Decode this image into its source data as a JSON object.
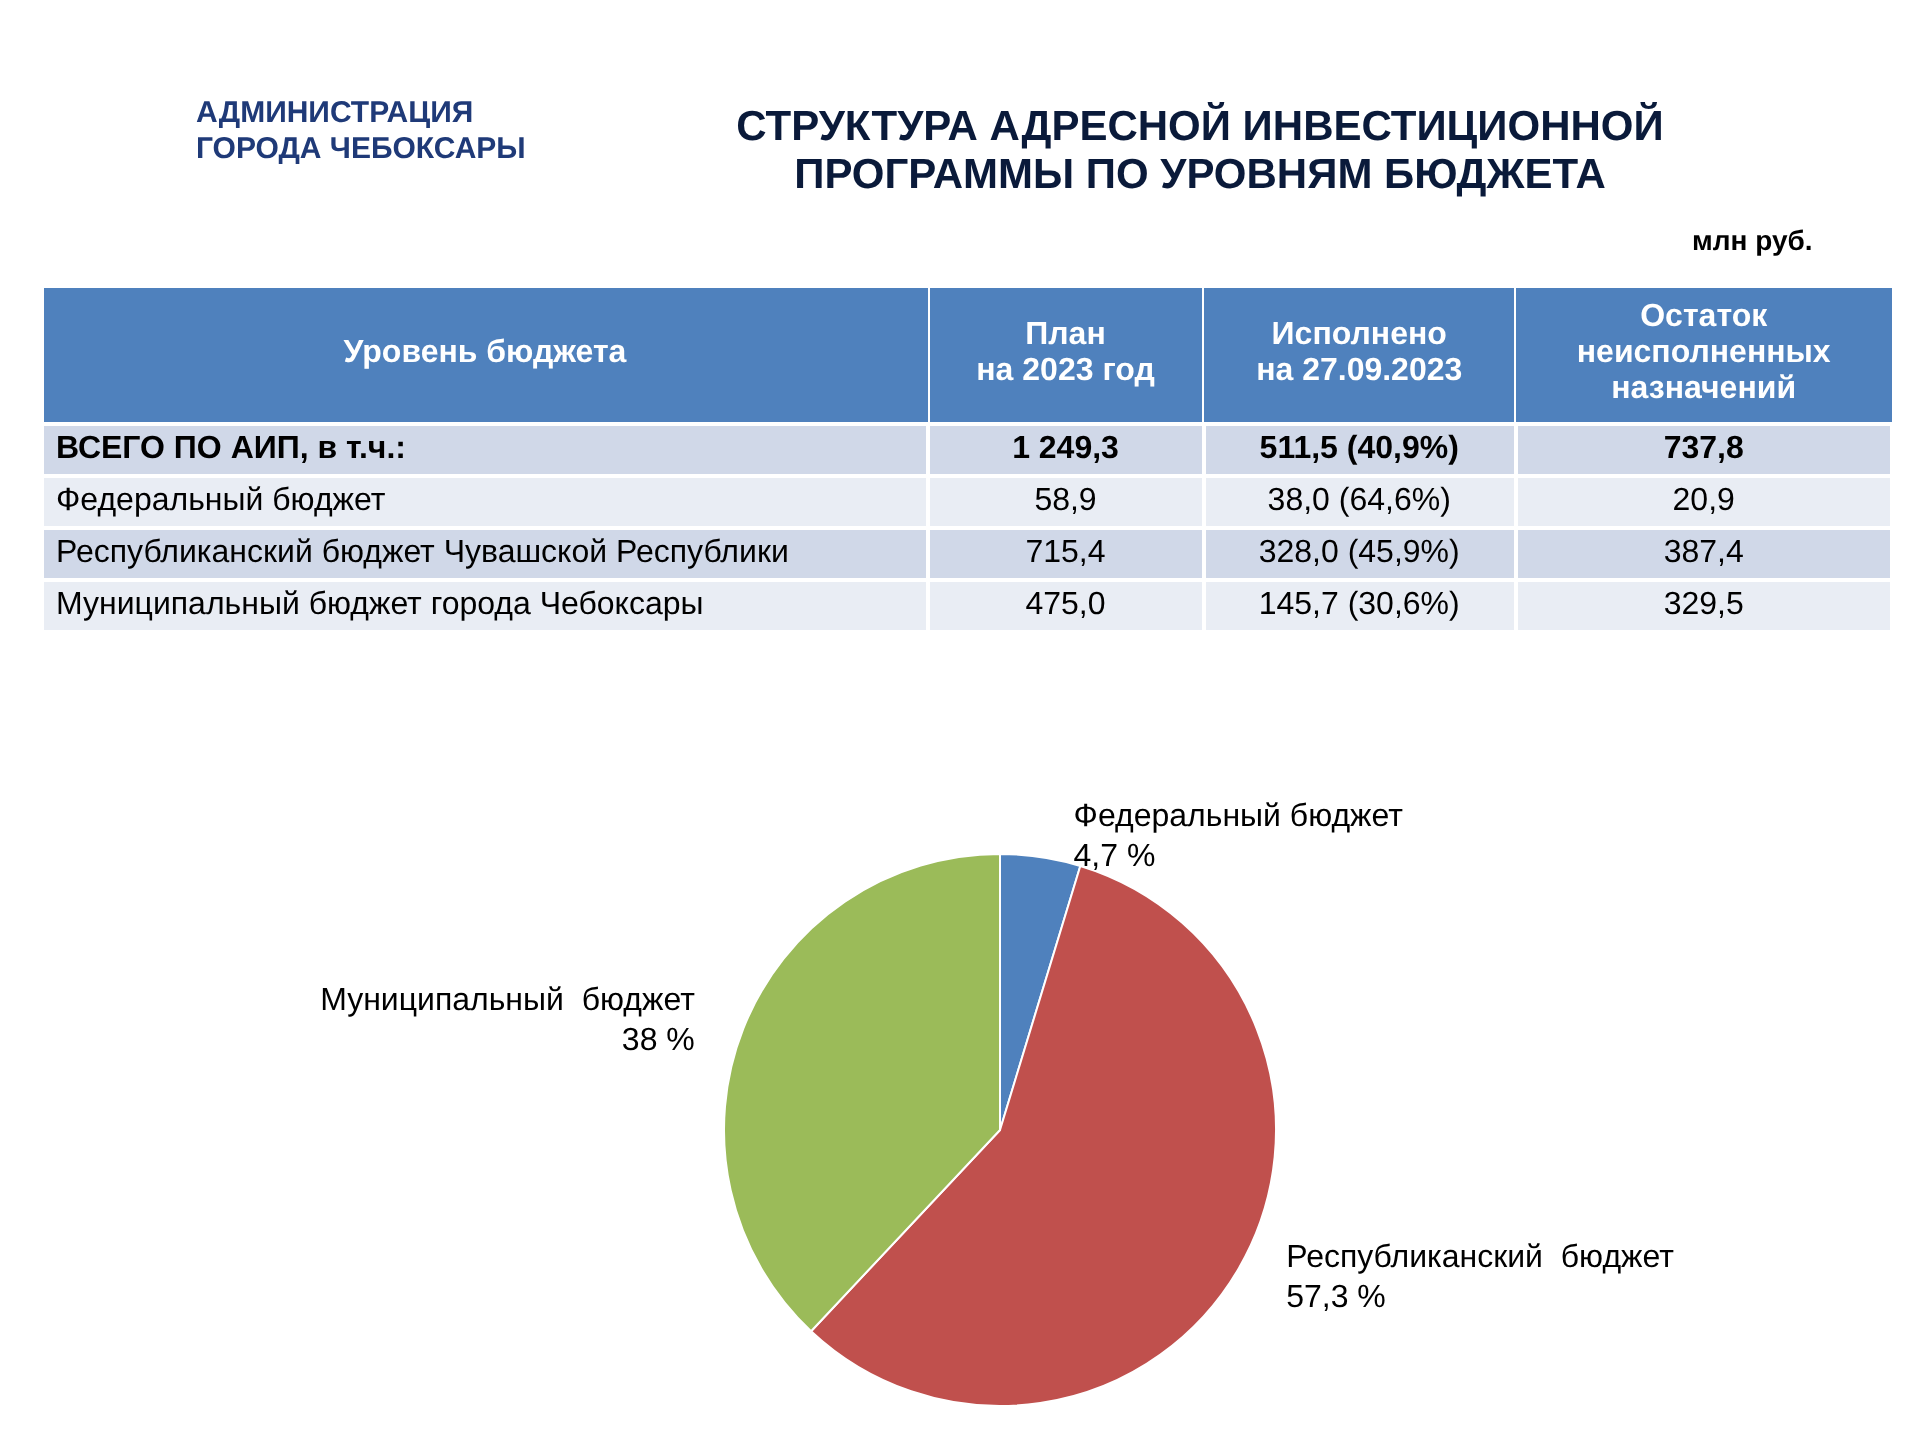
{
  "chart_data": [
    {
      "type": "other",
      "title": "СТРУКТУРА АДРЕСНОЙ ИНВЕСТИЦИОННОЙ\nПРОГРАММЫ ПО УРОВНЯМ БЮДЖЕТА",
      "annotations": [
        "АДМИНИСТРАЦИЯ\nГОРОДА ЧЕБОКСАРЫ",
        "млн руб."
      ],
      "categories": [
        "Уровень бюджета",
        "План\nна 2023 год",
        "Исполнено\nна 27.09.2023",
        "Остаток\nнеисполненных\nназначений"
      ],
      "y_categories": [
        "ВСЕГО ПО АИП, в т.ч.:",
        "Федеральный бюджет",
        "Республиканский  бюджет Чувашской Республики",
        "Муниципальный  бюджет города Чебоксары"
      ],
      "cell_labels": [
        [
          "1 249,3",
          "511,5 (40,9%)",
          "737,8"
        ],
        [
          "58,9",
          "38,0 (64,6%)",
          "20,9"
        ],
        [
          "715,4",
          "328,0 (45,9%)",
          "387,4"
        ],
        [
          "475,0",
          "145,7 (30,6%)",
          "329,5"
        ]
      ]
    },
    {
      "type": "pie",
      "categories": [
        "Федеральный бюджет",
        "Республиканский  бюджет",
        "Муниципальный  бюджет"
      ],
      "values": [
        4.7,
        57.3,
        38
      ],
      "value_labels": [
        "4,7 %",
        "57,3 %",
        "38 %"
      ],
      "colors": [
        "#4f81bd",
        "#c0504d",
        "#9bbb59"
      ]
    }
  ]
}
